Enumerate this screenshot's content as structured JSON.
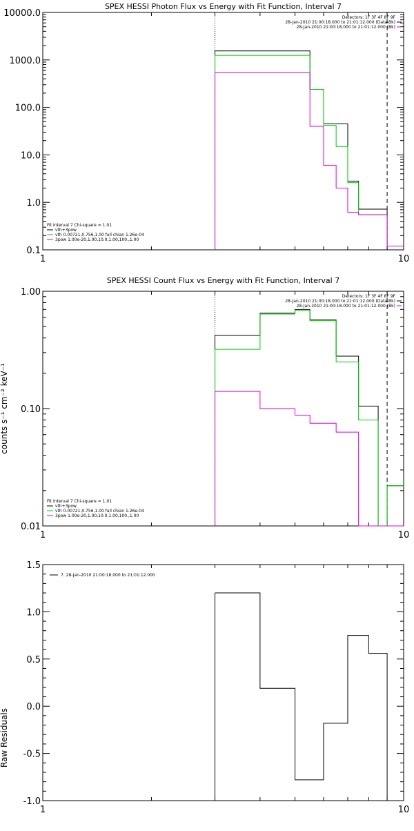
{
  "colors": {
    "data": "#000000",
    "model": "#00cc00",
    "component": "#dd00dd"
  },
  "chart_data": [
    {
      "type": "line",
      "step": true,
      "title": "SPEX HESSI Photon Flux vs Energy with Fit Function, Interval 7",
      "xlabel": "",
      "ylabel": "",
      "xscale": "log",
      "yscale": "log",
      "xlim": [
        1,
        10
      ],
      "ylim": [
        0.1,
        10000
      ],
      "xticks": [
        "1",
        "10"
      ],
      "yticks": [
        "10000.0",
        "1000.0",
        "100.0",
        "10.0",
        "1.0",
        "0.1"
      ],
      "vlines": [
        {
          "x": 3,
          "style": "dotted"
        },
        {
          "x": 9,
          "style": "dashed"
        }
      ],
      "info_top_right": [
        "Detectors: 1F 3F 4F 8F 9F",
        "28-Jan-2010 21:00:18.000 to 21:01:12.000 (Data-Bk)",
        "28-Jan-2010 21:00:18.000 to 21:01:12.000 (Bk)"
      ],
      "info_bottom_left": [
        "Fit Interval 7   Chi-square = 1.01",
        "vth+3pow",
        "vth 0.00721,0.756,1.00   full chian 1.26e-04",
        "3pow 1.00e-20,1.00,10.0,1.00,100.,1.00"
      ],
      "bin_edges": [
        3.0,
        3.5,
        4.0,
        4.5,
        5.0,
        5.5,
        6.0,
        6.5,
        7.0,
        7.5,
        8.0,
        8.5,
        9.0,
        10.0
      ],
      "series": [
        {
          "name": "",
          "role": "data",
          "values": [
            1550,
            1550,
            1550,
            1550,
            1550,
            240,
            45,
            45,
            2.8,
            0.72,
            0.72,
            0.72,
            0.12
          ]
        },
        {
          "name": "",
          "role": "model",
          "values": [
            1250,
            1250,
            1250,
            1250,
            1250,
            240,
            42,
            15,
            2.6,
            0.55,
            0.55,
            0.55,
            0.12
          ]
        },
        {
          "name": "",
          "role": "component",
          "values": [
            540,
            540,
            540,
            540,
            540,
            40,
            6,
            2,
            0.62,
            0.55,
            0.55,
            0.55,
            0.12
          ]
        }
      ]
    },
    {
      "type": "line",
      "step": true,
      "title": "SPEX HESSI Count Flux vs Energy with Fit Function, Interval 7",
      "xlabel": "",
      "ylabel": "counts s⁻¹ cm⁻² keV⁻¹",
      "xscale": "log",
      "yscale": "log",
      "xlim": [
        1,
        10
      ],
      "ylim": [
        0.01,
        1
      ],
      "xticks": [
        "1",
        "10"
      ],
      "yticks": [
        "1.00",
        "0.10",
        "0.01"
      ],
      "vlines": [
        {
          "x": 3,
          "style": "dotted"
        },
        {
          "x": 9,
          "style": "dashed"
        }
      ],
      "info_top_right": [
        "Detectors: 1F 3F 4F 8F 9F",
        "28-Jan-2010 21:00:18.000 to 21:01:12.000 (Data-Bk)",
        "28-Jan-2010 21:00:18.000 to 21:01:12.000 (Bk)"
      ],
      "info_bottom_left": [
        "Fit Interval 7   Chi-square = 1.01",
        "vth+3pow",
        "vth 0.00721,0.756,1.00   full chian 1.26e-04",
        "3pow 1.00e-20,1.00,10.0,1.00,100.,1.00"
      ],
      "bin_edges": [
        3.0,
        3.5,
        4.0,
        4.5,
        5.0,
        5.5,
        6.0,
        6.5,
        7.0,
        7.5,
        8.0,
        8.5,
        9.0,
        10.0
      ],
      "series": [
        {
          "name": "",
          "role": "data",
          "values": [
            0.42,
            0.42,
            0.65,
            0.65,
            0.7,
            0.57,
            0.57,
            0.28,
            0.28,
            0.105,
            0.105,
            0.01,
            0.022
          ]
        },
        {
          "name": "",
          "role": "model",
          "values": [
            0.32,
            0.32,
            0.64,
            0.64,
            0.69,
            0.56,
            0.56,
            0.25,
            0.25,
            0.08,
            0.08,
            0.01,
            0.022
          ]
        },
        {
          "name": "",
          "role": "component",
          "values": [
            0.14,
            0.14,
            0.1,
            0.1,
            0.088,
            0.075,
            0.075,
            0.063,
            0.063,
            0.01,
            0.01,
            0.01,
            0.01
          ]
        }
      ]
    },
    {
      "type": "line",
      "step": true,
      "title": "",
      "xlabel": "",
      "ylabel": "Raw Residuals",
      "xscale": "log",
      "yscale": "linear",
      "xlim": [
        1,
        10
      ],
      "ylim": [
        -1.0,
        1.5
      ],
      "xticks": [
        "1",
        "10"
      ],
      "yticks": [
        "1.5",
        "1.0",
        "0.5",
        "0.0",
        "-0.5",
        "-1.0"
      ],
      "legend": "7. 28-Jan-2010 21:00:18.000 to 21:01:12.000",
      "bin_edges": [
        3.0,
        4.0,
        5.0,
        6.0,
        7.0,
        8.0,
        8.5,
        9.0
      ],
      "series": [
        {
          "name": "7. 28-Jan-2010 21:00:18.000 to 21:01:12.000",
          "role": "data",
          "values": [
            1.2,
            0.19,
            -0.78,
            -0.18,
            0.75,
            0.56,
            0.56
          ]
        }
      ]
    }
  ]
}
